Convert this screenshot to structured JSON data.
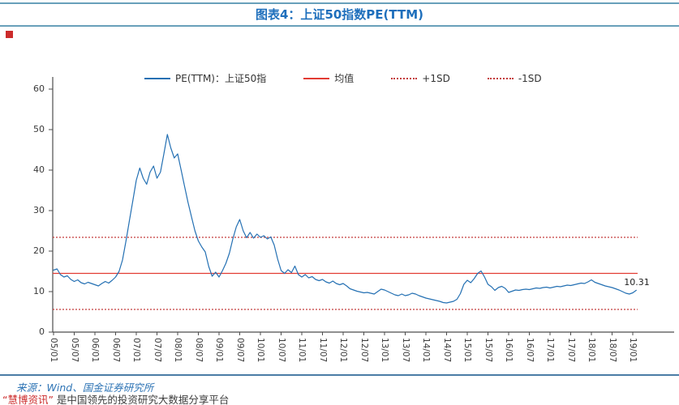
{
  "header": {
    "title": "图表4：上证50指数PE(TTM)"
  },
  "colors": {
    "title": "#1e6fbc",
    "rule": "#68a0ba",
    "line": "#2470b3",
    "mean": "#e23b33",
    "sd": "#c43c3c",
    "axis": "#4d4d4d",
    "text": "#3a3a3a",
    "footer_rule": "#4a7ca5",
    "footer_source": "#2e74b5",
    "brand_red": "#cc2b2b"
  },
  "legend": {
    "items": [
      {
        "key": "pe-ttm",
        "label": "PE(TTM)：上证50指",
        "style": "solid",
        "color": "#2470b3"
      },
      {
        "key": "mean",
        "label": "均值",
        "style": "solid",
        "color": "#e23b33"
      },
      {
        "key": "plus-1sd",
        "label": "+1SD",
        "style": "dotted",
        "color": "#c43c3c"
      },
      {
        "key": "minus-1sd",
        "label": "-1SD",
        "style": "dotted",
        "color": "#c43c3c"
      }
    ]
  },
  "chart_data": {
    "type": "line",
    "title": "图表4：上证50指数PE(TTM)",
    "xlabel": "",
    "ylabel": "",
    "ylim": [
      0,
      60
    ],
    "yticks": [
      0,
      10,
      20,
      30,
      40,
      50,
      60
    ],
    "x_start": "2005/01",
    "x_interval": "monthly",
    "x_tick_labels": [
      "05/01",
      "05/07",
      "06/01",
      "06/07",
      "07/01",
      "07/07",
      "08/01",
      "08/07",
      "09/01",
      "09/07",
      "10/01",
      "10/07",
      "11/01",
      "11/07",
      "12/01",
      "12/07",
      "13/01",
      "13/07",
      "14/01",
      "14/07",
      "15/01",
      "15/07",
      "16/01",
      "16/07",
      "17/01",
      "17/07",
      "18/01",
      "18/07",
      "19/01"
    ],
    "legend_position": "top",
    "grid": false,
    "series": [
      {
        "name": "PE(TTM)：上证50指",
        "color": "#2470b3",
        "values": [
          15.3,
          15.6,
          14.2,
          13.6,
          13.9,
          13.0,
          12.5,
          12.9,
          12.2,
          11.9,
          12.3,
          12.0,
          11.7,
          11.4,
          12.0,
          12.5,
          12.1,
          12.8,
          13.6,
          15.0,
          17.8,
          22.5,
          27.5,
          32.5,
          37.5,
          40.5,
          38.0,
          36.5,
          39.5,
          41.0,
          38.0,
          39.5,
          44.0,
          48.8,
          45.5,
          43.0,
          44.0,
          40.0,
          36.0,
          32.0,
          28.5,
          25.0,
          22.5,
          21.0,
          19.8,
          16.2,
          13.8,
          14.8,
          13.6,
          15.2,
          17.0,
          19.5,
          23.0,
          26.0,
          27.8,
          25.0,
          23.3,
          24.6,
          23.2,
          24.2,
          23.4,
          23.8,
          23.0,
          23.5,
          21.5,
          18.0,
          15.2,
          14.5,
          15.4,
          14.7,
          16.3,
          14.2,
          13.6,
          14.2,
          13.4,
          13.7,
          13.0,
          12.7,
          13.0,
          12.4,
          12.1,
          12.6,
          12.0,
          11.7,
          12.0,
          11.4,
          10.7,
          10.4,
          10.1,
          9.9,
          9.7,
          9.8,
          9.6,
          9.4,
          10.0,
          10.6,
          10.4,
          10.0,
          9.6,
          9.2,
          9.0,
          9.4,
          9.0,
          9.2,
          9.6,
          9.4,
          9.0,
          8.7,
          8.4,
          8.2,
          8.0,
          7.8,
          7.6,
          7.3,
          7.2,
          7.4,
          7.6,
          8.1,
          9.5,
          11.8,
          12.8,
          12.2,
          13.2,
          14.5,
          15.1,
          13.6,
          11.8,
          11.2,
          10.3,
          11.0,
          11.3,
          10.8,
          9.8,
          10.1,
          10.4,
          10.3,
          10.5,
          10.6,
          10.5,
          10.7,
          10.9,
          10.8,
          11.0,
          11.1,
          10.9,
          11.1,
          11.3,
          11.2,
          11.4,
          11.6,
          11.5,
          11.7,
          11.9,
          12.1,
          12.0,
          12.4,
          12.9,
          12.3,
          12.0,
          11.7,
          11.4,
          11.2,
          11.0,
          10.7,
          10.4,
          10.0,
          9.6,
          9.4,
          9.7,
          10.31
        ]
      }
    ],
    "reference_lines": [
      {
        "name": "均值",
        "value": 14.5,
        "style": "solid",
        "color": "#e23b33"
      },
      {
        "name": "+1SD",
        "value": 23.4,
        "style": "dotted",
        "color": "#c43c3c"
      },
      {
        "name": "-1SD",
        "value": 5.6,
        "style": "dotted",
        "color": "#c43c3c"
      }
    ],
    "end_label": "10.31"
  },
  "footer": {
    "source": "来源：Wind、国金证券研究所",
    "brand": "“慧博资讯”",
    "tagline": " 是中国领先的投资研究大数据分享平台"
  }
}
